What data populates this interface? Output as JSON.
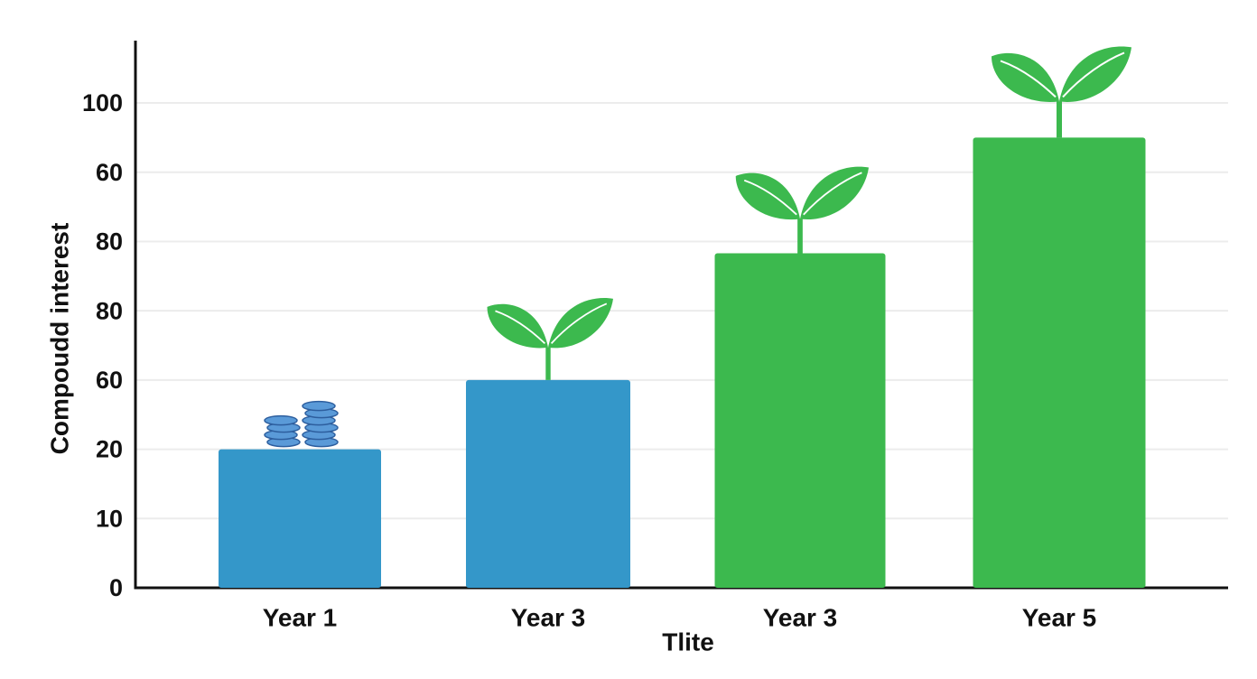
{
  "chart_data": {
    "type": "bar",
    "x_label": "Tlite",
    "y_label": "Compoudd interest",
    "categories": [
      "Year 1",
      "Year 3",
      "Year 3",
      "Year 5"
    ],
    "values": [
      2,
      3,
      4.83,
      6.5
    ],
    "colors": [
      "#3497c9",
      "#3497c9",
      "#3cb94e",
      "#3cb94e"
    ],
    "ylim": [
      0,
      7.9
    ],
    "yticks": [
      0,
      {
        "value": 1,
        "label": "10"
      },
      {
        "value": 2,
        "label": "20"
      },
      {
        "value": 3,
        "label": "60"
      },
      {
        "value": 4,
        "label": "80"
      },
      {
        "value": 5,
        "label": "80"
      },
      {
        "value": 6,
        "label": "60"
      },
      {
        "value": 7,
        "label": "100"
      }
    ],
    "grid": true
  }
}
